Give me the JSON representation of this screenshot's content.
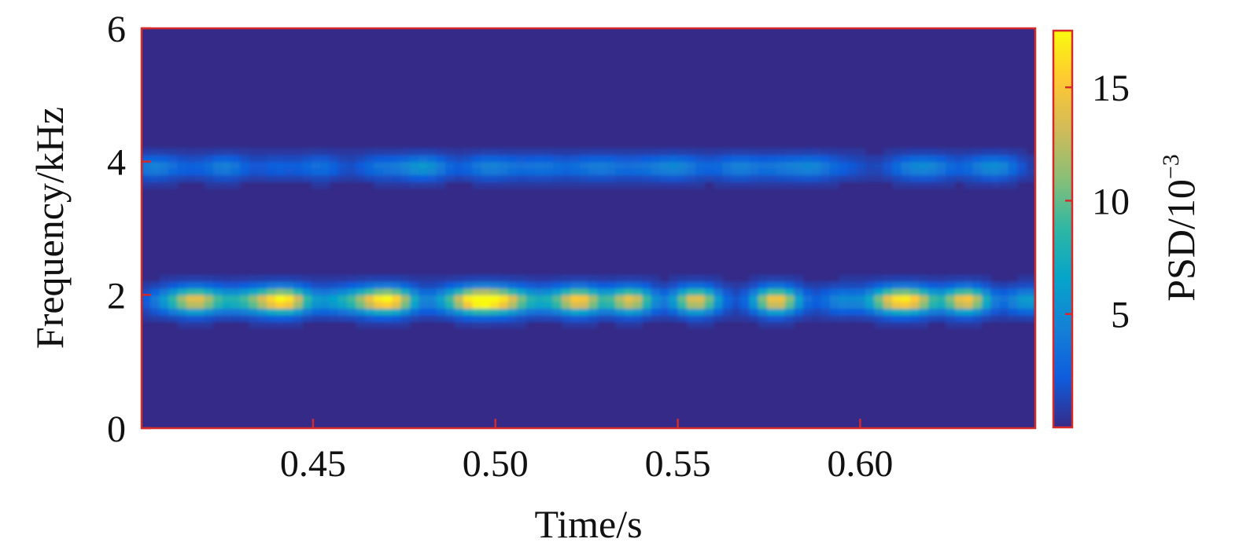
{
  "chart_data": {
    "type": "heatmap",
    "xlabel": "Time/s",
    "ylabel": "Frequency/kHz",
    "xlim": [
      0.403,
      0.648
    ],
    "ylim": [
      0,
      6
    ],
    "x_ticks": [
      "0.45",
      "0.50",
      "0.55",
      "0.60"
    ],
    "x_tick_values": [
      0.45,
      0.5,
      0.55,
      0.6
    ],
    "y_ticks": [
      "0",
      "2",
      "4",
      "6"
    ],
    "y_tick_values": [
      0,
      2,
      4,
      6
    ],
    "colorbar": {
      "label": "PSD/10",
      "label_exponent": "−3",
      "ticks": [
        "5",
        "10",
        "15"
      ],
      "tick_values": [
        5,
        10,
        15
      ],
      "range": [
        0,
        17.5
      ]
    },
    "colormap": [
      "#352a87",
      "#0f5cdd",
      "#1481d6",
      "#06a4ca",
      "#2eb7a4",
      "#87bf77",
      "#d1bb59",
      "#fec832",
      "#f9fb0e"
    ],
    "background_value": 0.4,
    "bands": [
      {
        "name": "2 kHz band",
        "freq_center": 1.92,
        "freq_halfwidth": 0.17,
        "blobs": [
          {
            "t": 0.41,
            "psd": 4.0
          },
          {
            "t": 0.418,
            "psd": 13.0
          },
          {
            "t": 0.428,
            "psd": 5.0
          },
          {
            "t": 0.436,
            "psd": 8.0
          },
          {
            "t": 0.443,
            "psd": 14.5
          },
          {
            "t": 0.456,
            "psd": 5.0
          },
          {
            "t": 0.465,
            "psd": 9.0
          },
          {
            "t": 0.472,
            "psd": 14.0
          },
          {
            "t": 0.487,
            "psd": 5.0
          },
          {
            "t": 0.495,
            "psd": 16.0
          },
          {
            "t": 0.503,
            "psd": 12.0
          },
          {
            "t": 0.513,
            "psd": 5.0
          },
          {
            "t": 0.523,
            "psd": 15.0
          },
          {
            "t": 0.537,
            "psd": 14.0
          },
          {
            "t": 0.555,
            "psd": 14.0
          },
          {
            "t": 0.577,
            "psd": 15.0
          },
          {
            "t": 0.595,
            "psd": 4.5
          },
          {
            "t": 0.608,
            "psd": 11.0
          },
          {
            "t": 0.615,
            "psd": 12.0
          },
          {
            "t": 0.629,
            "psd": 15.0
          },
          {
            "t": 0.646,
            "psd": 6.0
          }
        ]
      },
      {
        "name": "4 kHz band",
        "freq_center": 3.92,
        "freq_halfwidth": 0.15,
        "blobs": [
          {
            "t": 0.406,
            "psd": 4.0
          },
          {
            "t": 0.415,
            "psd": 1.5
          },
          {
            "t": 0.426,
            "psd": 4.0
          },
          {
            "t": 0.44,
            "psd": 2.0
          },
          {
            "t": 0.452,
            "psd": 3.0
          },
          {
            "t": 0.468,
            "psd": 3.0
          },
          {
            "t": 0.478,
            "psd": 3.5
          },
          {
            "t": 0.483,
            "psd": 3.0
          },
          {
            "t": 0.497,
            "psd": 3.5
          },
          {
            "t": 0.504,
            "psd": 2.0
          },
          {
            "t": 0.513,
            "psd": 3.0
          },
          {
            "t": 0.523,
            "psd": 2.0
          },
          {
            "t": 0.53,
            "psd": 3.0
          },
          {
            "t": 0.54,
            "psd": 2.5
          },
          {
            "t": 0.549,
            "psd": 4.0
          },
          {
            "t": 0.557,
            "psd": 1.5
          },
          {
            "t": 0.567,
            "psd": 4.0
          },
          {
            "t": 0.578,
            "psd": 3.0
          },
          {
            "t": 0.587,
            "psd": 4.0
          },
          {
            "t": 0.597,
            "psd": 1.5
          },
          {
            "t": 0.613,
            "psd": 3.0
          },
          {
            "t": 0.62,
            "psd": 3.5
          },
          {
            "t": 0.632,
            "psd": 2.0
          },
          {
            "t": 0.638,
            "psd": 4.0
          }
        ]
      }
    ]
  }
}
